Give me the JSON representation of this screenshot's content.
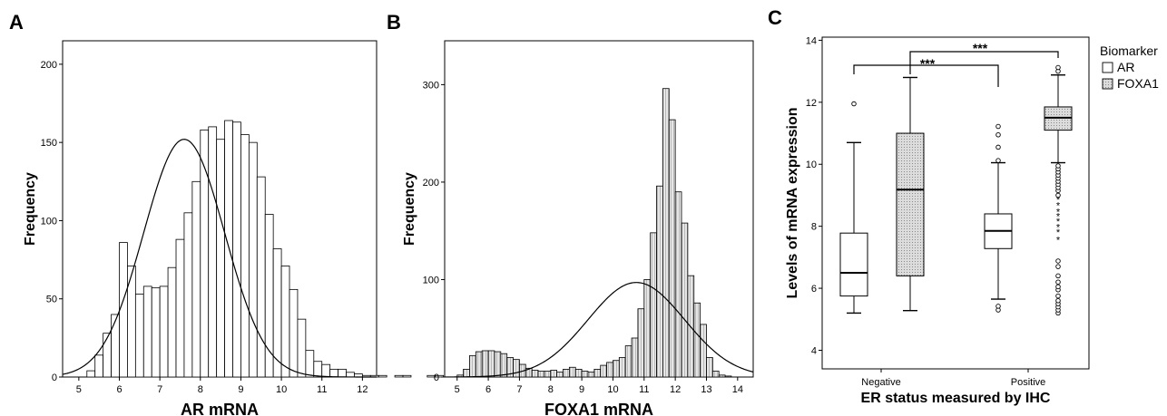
{
  "chart_data": [
    {
      "panel": "A",
      "type": "bar",
      "xlabel": "AR mRNA",
      "ylabel": "Frequency",
      "xlim": [
        4.6,
        12.35
      ],
      "ylim": [
        0,
        215
      ],
      "xticks": [
        5,
        6,
        7,
        8,
        9,
        10,
        11,
        12
      ],
      "yticks": [
        0,
        50,
        100,
        150,
        200
      ],
      "bin_width": 0.2,
      "bin_start": 5.2,
      "values": [
        4,
        14,
        28,
        40,
        86,
        71,
        53,
        58,
        57,
        58,
        70,
        88,
        105,
        125,
        158,
        160,
        152,
        164,
        163,
        155,
        150,
        128,
        104,
        82,
        71,
        56,
        37,
        17,
        10,
        8,
        5,
        5,
        3,
        2,
        1,
        1,
        1,
        0,
        1,
        1,
        0,
        0,
        1,
        1
      ],
      "normal_curve": {
        "mean": 7.6,
        "sd": 1.0,
        "peak": 152
      },
      "grid": false
    },
    {
      "panel": "B",
      "type": "bar",
      "xlabel": "FOXA1 mRNA",
      "ylabel": "Frequency",
      "xlim": [
        4.6,
        14.5
      ],
      "ylim": [
        0,
        345
      ],
      "xticks": [
        5,
        6,
        7,
        8,
        9,
        10,
        11,
        12,
        13,
        14
      ],
      "yticks": [
        0,
        100,
        200,
        300
      ],
      "bin_width": 0.2,
      "bin_start": 5.0,
      "values": [
        2,
        8,
        22,
        26,
        27,
        27,
        26,
        24,
        20,
        18,
        13,
        9,
        7,
        6,
        6,
        7,
        5,
        8,
        10,
        8,
        6,
        5,
        8,
        12,
        15,
        17,
        20,
        32,
        40,
        70,
        100,
        148,
        196,
        296,
        264,
        190,
        158,
        104,
        76,
        54,
        20,
        6,
        2,
        1
      ],
      "normal_curve": {
        "mean": 10.75,
        "sd": 1.55,
        "peak": 97
      },
      "grid": false
    },
    {
      "panel": "C",
      "type": "box",
      "xlabel": "ER status measured by IHC",
      "ylabel": "Levels of mRNA expression",
      "categories": [
        "Negative",
        "Positive"
      ],
      "ylim": [
        3.4,
        14.1
      ],
      "yticks": [
        4,
        6,
        8,
        10,
        12,
        14
      ],
      "legend_title": "Biomarker",
      "legend_position": "top-right",
      "series": [
        {
          "name": "AR",
          "fill": "#ffffff",
          "boxes": [
            {
              "category": "Negative",
              "whisker_low": 5.2,
              "q1": 5.75,
              "median": 6.5,
              "q3": 7.78,
              "whisker_high": 10.7,
              "outliers": [
                11.95
              ]
            },
            {
              "category": "Positive",
              "whisker_low": 5.65,
              "q1": 7.28,
              "median": 7.85,
              "q3": 8.4,
              "whisker_high": 10.05,
              "outliers": [
                5.3,
                5.42,
                10.12,
                10.55,
                10.95,
                11.22
              ]
            }
          ]
        },
        {
          "name": "FOXA1",
          "fill": "#d0d0d0",
          "boxes": [
            {
              "category": "Negative",
              "whisker_low": 5.28,
              "q1": 6.4,
              "median": 9.18,
              "q3": 11.0,
              "whisker_high": 12.8,
              "outliers": []
            },
            {
              "category": "Positive",
              "whisker_low": 10.05,
              "q1": 11.1,
              "median": 11.5,
              "q3": 11.85,
              "whisker_high": 12.88,
              "outliers": [
                5.2,
                5.3,
                5.4,
                5.5,
                5.6,
                5.75,
                5.95,
                6.05,
                6.2,
                6.4,
                6.7,
                6.88,
                7.6,
                7.85,
                8.0,
                8.2,
                8.35,
                8.5,
                8.7,
                8.9,
                9.0,
                9.15,
                9.25,
                9.35,
                9.45,
                9.55,
                9.65,
                9.75,
                9.85,
                9.95,
                13.0,
                13.12
              ]
            }
          ]
        }
      ],
      "significance": [
        "***",
        "***"
      ]
    }
  ],
  "panel_labels": [
    "A",
    "B",
    "C"
  ]
}
